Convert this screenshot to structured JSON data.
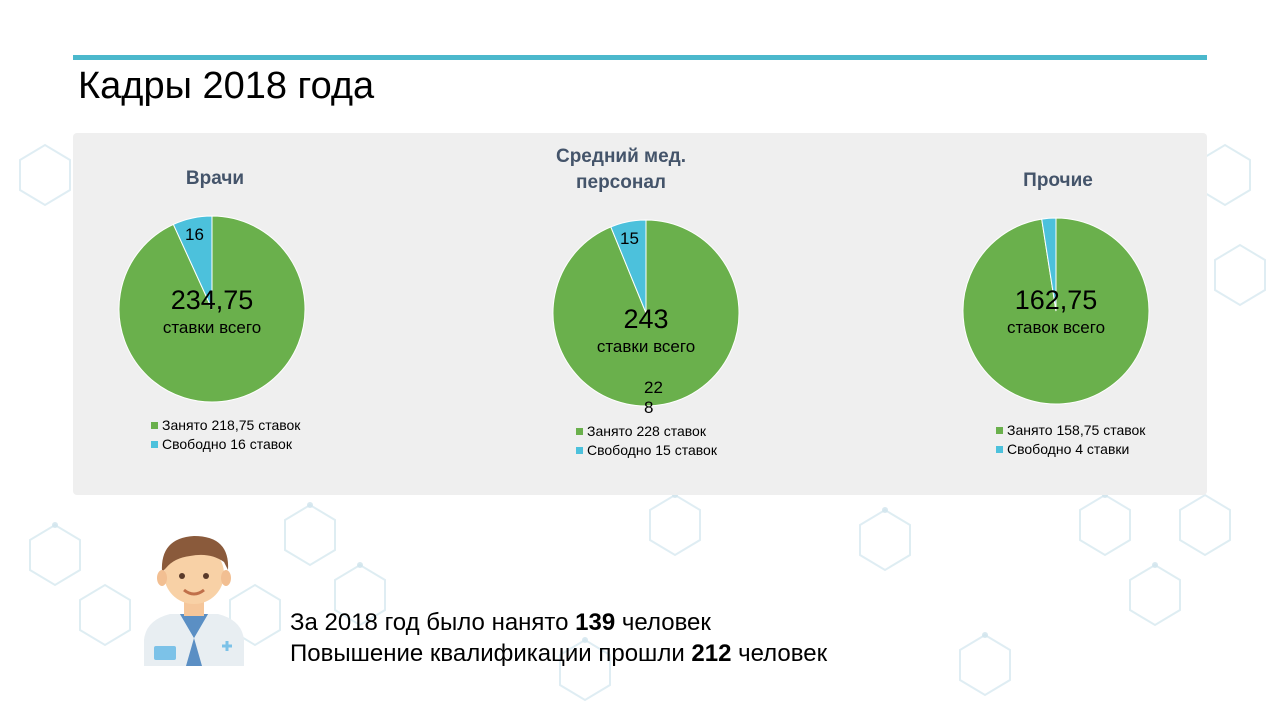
{
  "title": "Кадры 2018 года",
  "colors": {
    "accent": "#4bb8cc",
    "occupied": "#6ab04c",
    "free": "#4cc1dc",
    "title_text": "#44546a"
  },
  "charts": [
    {
      "title": "Врачи",
      "center_value": "234,75",
      "center_label": "ставки всего",
      "slice_label": "16",
      "legend": [
        "Занято 218,75 ставок",
        "Свободно 16 ставок"
      ]
    },
    {
      "title": "Средний мед.\nперсонал",
      "center_value": "243",
      "center_label": "ставки всего",
      "slice_label": "15",
      "slice_label_occupied": "22\n8",
      "legend": [
        "Занято 228 ставок",
        "Свободно 15 ставок"
      ]
    },
    {
      "title": "Прочие",
      "center_value": "162,75",
      "center_label": "ставок всего",
      "legend": [
        "Занято 158,75 ставок",
        "Свободно 4 ставки"
      ]
    }
  ],
  "chart_data": [
    {
      "type": "pie",
      "title": "Врачи",
      "categories": [
        "Занято",
        "Свободно"
      ],
      "values": [
        218.75,
        16
      ],
      "legend_position": "bottom"
    },
    {
      "type": "pie",
      "title": "Средний мед. персонал",
      "categories": [
        "Занято",
        "Свободно"
      ],
      "values": [
        228,
        15
      ],
      "legend_position": "bottom"
    },
    {
      "type": "pie",
      "title": "Прочие",
      "categories": [
        "Занято",
        "Свободно"
      ],
      "values": [
        158.75,
        4
      ],
      "legend_position": "bottom"
    }
  ],
  "footer": {
    "line1_prefix": "За 2018 год было нанято ",
    "line1_number": "139",
    "line1_suffix": " человек",
    "line2_prefix": "Повышение квалификации прошли ",
    "line2_number": "212",
    "line2_suffix": " человек"
  }
}
